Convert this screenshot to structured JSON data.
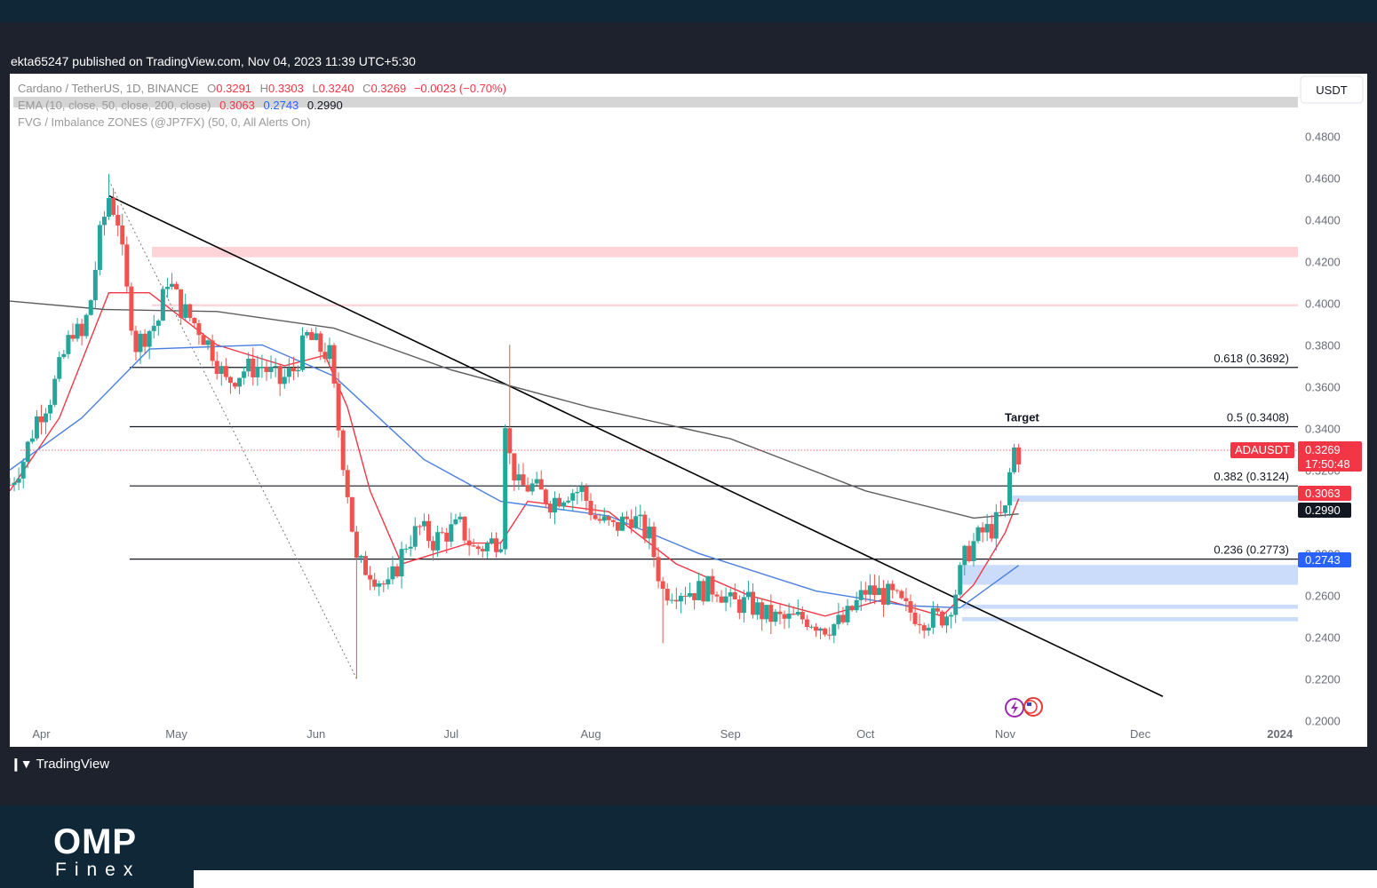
{
  "header": {
    "published": "ekta65247 published on TradingView.com, Nov 04, 2023 11:39 UTC+5:30"
  },
  "legend": {
    "symbol": "Cardano / TetherUS, 1D, BINANCE",
    "o_label": "O",
    "o_value": "0.3291",
    "h_label": "H",
    "h_value": "0.3303",
    "l_label": "L",
    "l_value": "0.3240",
    "c_label": "C",
    "c_value": "0.3269",
    "change": "−0.0023 (−0.70%)",
    "ema_label": "EMA (10, close, 50, close, 200, close)",
    "ema10": "0.3063",
    "ema50": "0.2743",
    "ema200": "0.2990",
    "fvg_label": "FVG / Imbalance ZONES (@JP7FX) (50, 0, All Alerts On)"
  },
  "currency": "USDT",
  "footer": {
    "tradingview": "TradingView",
    "brand_top": "OMP",
    "brand_bottom": "Finex"
  },
  "colors": {
    "up": "#26a69a",
    "down": "#ef5350",
    "ema10": "#f23645",
    "ema50": "#4a7fe0",
    "ema200": "#5d5d5d"
  },
  "price_tags": {
    "symbol": "ADAUSDT",
    "last": "0.3269",
    "countdown": "17:50:48",
    "ema10": "0.3063",
    "ema200": "0.2990",
    "ema50": "0.2743"
  },
  "chart_data": {
    "type": "candlestick",
    "y_axis": {
      "ticks": [
        "0.4800",
        "0.4600",
        "0.4400",
        "0.4200",
        "0.4000",
        "0.3800",
        "0.3600",
        "0.3400",
        "0.3200",
        "0.3000",
        "0.2800",
        "0.2600",
        "0.2400",
        "0.2200",
        "0.2000"
      ],
      "range": [
        0.195,
        0.51
      ]
    },
    "x_axis": {
      "labels": [
        "Apr",
        "May",
        "Jun",
        "Jul",
        "Aug",
        "Sep",
        "Oct",
        "Nov",
        "Dec",
        "2024"
      ],
      "range": [
        "2023-03-25",
        "2024-01-05"
      ]
    },
    "fib_levels": [
      {
        "label": "0.618 (0.3692)",
        "value": 0.3692
      },
      {
        "label": "0.5 (0.3408)",
        "value": 0.3408
      },
      {
        "label": "0.382 (0.3124)",
        "value": 0.3124
      },
      {
        "label": "0.236 (0.2773)",
        "value": 0.2773
      }
    ],
    "annotation": "Target",
    "trendline": {
      "from": [
        "2023-04-16",
        0.4515
      ],
      "to": [
        "2023-12-06",
        0.2115
      ]
    },
    "dotted_line": {
      "from": [
        "2023-04-16",
        0.459
      ],
      "to": [
        "2023-06-10",
        0.22
      ]
    },
    "zones_red": [
      [
        0.422,
        0.427
      ],
      [
        0.3985,
        0.3995
      ]
    ],
    "zones_blue": [
      [
        0.3048,
        0.3078
      ],
      [
        0.265,
        0.2745
      ],
      [
        0.2535,
        0.2555
      ],
      [
        0.2475,
        0.2495
      ]
    ],
    "anchors": [
      [
        "2023-03-25",
        0.313
      ],
      [
        "2023-03-28",
        0.325
      ],
      [
        "2023-03-31",
        0.345
      ],
      [
        "2023-04-03",
        0.355
      ],
      [
        "2023-04-06",
        0.375
      ],
      [
        "2023-04-08",
        0.388
      ],
      [
        "2023-04-10",
        0.383
      ],
      [
        "2023-04-12",
        0.402
      ],
      [
        "2023-04-14",
        0.432
      ],
      [
        "2023-04-16",
        0.451
      ],
      [
        "2023-04-18",
        0.44
      ],
      [
        "2023-04-20",
        0.405
      ],
      [
        "2023-04-22",
        0.38
      ],
      [
        "2023-04-24",
        0.385
      ],
      [
        "2023-04-27",
        0.392
      ],
      [
        "2023-04-29",
        0.412
      ],
      [
        "2023-05-02",
        0.398
      ],
      [
        "2023-05-06",
        0.388
      ],
      [
        "2023-05-09",
        0.377
      ],
      [
        "2023-05-12",
        0.362
      ],
      [
        "2023-05-16",
        0.368
      ],
      [
        "2023-05-20",
        0.37
      ],
      [
        "2023-05-24",
        0.362
      ],
      [
        "2023-05-27",
        0.368
      ],
      [
        "2023-05-30",
        0.384
      ],
      [
        "2023-06-02",
        0.378
      ],
      [
        "2023-06-04",
        0.375
      ],
      [
        "2023-06-06",
        0.34
      ],
      [
        "2023-06-08",
        0.31
      ],
      [
        "2023-06-10",
        0.275
      ],
      [
        "2023-06-13",
        0.272
      ],
      [
        "2023-06-17",
        0.263
      ],
      [
        "2023-06-21",
        0.285
      ],
      [
        "2023-06-24",
        0.292
      ],
      [
        "2023-06-27",
        0.286
      ],
      [
        "2023-06-30",
        0.29
      ],
      [
        "2023-07-03",
        0.293
      ],
      [
        "2023-07-06",
        0.282
      ],
      [
        "2023-07-09",
        0.284
      ],
      [
        "2023-07-12",
        0.288
      ],
      [
        "2023-07-13",
        0.345
      ],
      [
        "2023-07-14",
        0.326
      ],
      [
        "2023-07-16",
        0.312
      ],
      [
        "2023-07-19",
        0.312
      ],
      [
        "2023-07-23",
        0.305
      ],
      [
        "2023-07-27",
        0.31
      ],
      [
        "2023-07-30",
        0.31
      ],
      [
        "2023-08-02",
        0.297
      ],
      [
        "2023-08-06",
        0.292
      ],
      [
        "2023-08-10",
        0.298
      ],
      [
        "2023-08-14",
        0.288
      ],
      [
        "2023-08-17",
        0.262
      ],
      [
        "2023-08-20",
        0.263
      ],
      [
        "2023-08-24",
        0.262
      ],
      [
        "2023-08-29",
        0.264
      ],
      [
        "2023-09-01",
        0.256
      ],
      [
        "2023-09-05",
        0.256
      ],
      [
        "2023-09-09",
        0.25
      ],
      [
        "2023-09-13",
        0.248
      ],
      [
        "2023-09-18",
        0.249
      ],
      [
        "2023-09-22",
        0.245
      ],
      [
        "2023-09-26",
        0.247
      ],
      [
        "2023-09-29",
        0.256
      ],
      [
        "2023-10-01",
        0.262
      ],
      [
        "2023-10-04",
        0.261
      ],
      [
        "2023-10-07",
        0.259
      ],
      [
        "2023-10-10",
        0.253
      ],
      [
        "2023-10-14",
        0.249
      ],
      [
        "2023-10-17",
        0.249
      ],
      [
        "2023-10-19",
        0.251
      ],
      [
        "2023-10-21",
        0.262
      ],
      [
        "2023-10-23",
        0.278
      ],
      [
        "2023-10-25",
        0.285
      ],
      [
        "2023-10-27",
        0.29
      ],
      [
        "2023-10-29",
        0.292
      ],
      [
        "2023-11-01",
        0.3
      ],
      [
        "2023-11-02",
        0.318
      ],
      [
        "2023-11-03",
        0.33
      ],
      [
        "2023-11-04",
        0.327
      ]
    ],
    "ema_series": [
      {
        "name": "EMA 10",
        "color": "#f23645",
        "points": [
          [
            "2023-03-25",
            0.31
          ],
          [
            "2023-04-05",
            0.345
          ],
          [
            "2023-04-16",
            0.405
          ],
          [
            "2023-04-25",
            0.405
          ],
          [
            "2023-05-10",
            0.38
          ],
          [
            "2023-05-25",
            0.37
          ],
          [
            "2023-06-03",
            0.375
          ],
          [
            "2023-06-08",
            0.35
          ],
          [
            "2023-06-13",
            0.31
          ],
          [
            "2023-06-20",
            0.275
          ],
          [
            "2023-07-05",
            0.285
          ],
          [
            "2023-07-12",
            0.285
          ],
          [
            "2023-07-18",
            0.305
          ],
          [
            "2023-08-05",
            0.3
          ],
          [
            "2023-08-20",
            0.275
          ],
          [
            "2023-09-05",
            0.26
          ],
          [
            "2023-09-22",
            0.25
          ],
          [
            "2023-10-05",
            0.258
          ],
          [
            "2023-10-18",
            0.25
          ],
          [
            "2023-10-25",
            0.265
          ],
          [
            "2023-11-01",
            0.29
          ],
          [
            "2023-11-04",
            0.3063
          ]
        ]
      },
      {
        "name": "EMA 50",
        "color": "#4a7fe0",
        "points": [
          [
            "2023-03-25",
            0.32
          ],
          [
            "2023-04-10",
            0.345
          ],
          [
            "2023-04-25",
            0.378
          ],
          [
            "2023-05-20",
            0.38
          ],
          [
            "2023-06-05",
            0.365
          ],
          [
            "2023-06-25",
            0.325
          ],
          [
            "2023-07-12",
            0.305
          ],
          [
            "2023-08-05",
            0.298
          ],
          [
            "2023-08-25",
            0.28
          ],
          [
            "2023-09-20",
            0.262
          ],
          [
            "2023-10-10",
            0.255
          ],
          [
            "2023-10-22",
            0.254
          ],
          [
            "2023-11-04",
            0.2743
          ]
        ]
      },
      {
        "name": "EMA 200",
        "color": "#5d5d5d",
        "points": [
          [
            "2023-03-25",
            0.401
          ],
          [
            "2023-04-15",
            0.397
          ],
          [
            "2023-05-10",
            0.396
          ],
          [
            "2023-06-05",
            0.388
          ],
          [
            "2023-07-01",
            0.368
          ],
          [
            "2023-08-01",
            0.35
          ],
          [
            "2023-09-01",
            0.335
          ],
          [
            "2023-10-01",
            0.31
          ],
          [
            "2023-10-25",
            0.297
          ],
          [
            "2023-11-04",
            0.299
          ]
        ]
      }
    ]
  }
}
